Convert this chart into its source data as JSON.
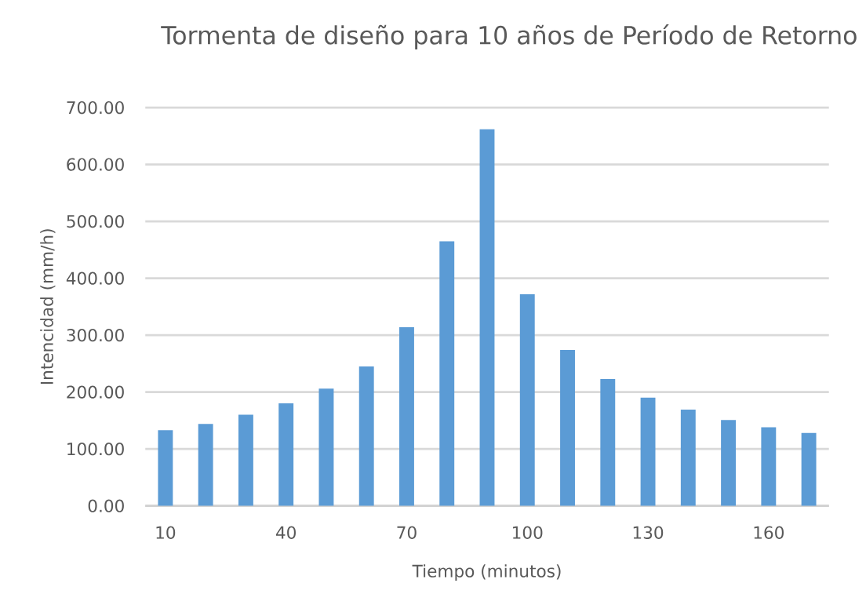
{
  "chart_data": {
    "type": "bar",
    "title": "Tormenta de  diseño para 10 años de Período de Retorno",
    "xlabel": "Tiempo (minutos)",
    "ylabel": "Intencidad (mm/h)",
    "categories": [
      "10",
      null,
      null,
      "40",
      null,
      null,
      "70",
      null,
      null,
      "100",
      null,
      null,
      "130",
      null,
      null,
      "160",
      null
    ],
    "values": [
      133,
      144,
      160,
      180,
      206,
      245,
      314,
      465,
      662,
      372,
      274,
      223,
      190,
      169,
      151,
      138,
      128
    ],
    "color": "#5b9bd5",
    "ylim": [
      0,
      700
    ],
    "yticks": [
      {
        "value": 0,
        "label": "0.00"
      },
      {
        "value": 100,
        "label": "100.00"
      },
      {
        "value": 200,
        "label": "200.00"
      },
      {
        "value": 300,
        "label": "300.00"
      },
      {
        "value": 400,
        "label": "400.00"
      },
      {
        "value": 500,
        "label": "500.00"
      },
      {
        "value": 600,
        "label": "600.00"
      },
      {
        "value": 700,
        "label": "700.00"
      }
    ],
    "grid": "y"
  }
}
